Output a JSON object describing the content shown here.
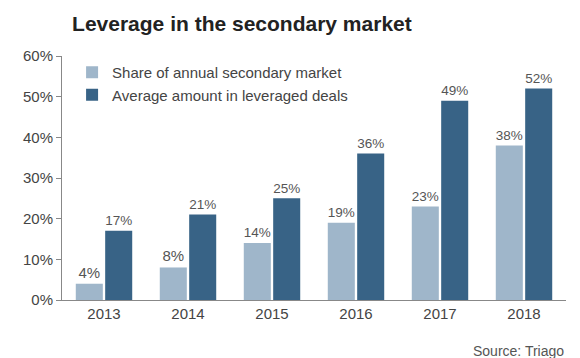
{
  "chart_data": {
    "type": "bar",
    "title": "Leverage in the secondary market",
    "source": "Source: Triago",
    "categories": [
      "2013",
      "2014",
      "2015",
      "2016",
      "2017",
      "2018"
    ],
    "series": [
      {
        "name": "Share of annual secondary market",
        "color": "#9fb6ca",
        "values": [
          4,
          8,
          14,
          19,
          23,
          38
        ],
        "value_labels": [
          "4%",
          "8%",
          "14%",
          "19%",
          "23%",
          "38%"
        ]
      },
      {
        "name": "Average amount in leveraged deals",
        "color": "#386386",
        "values": [
          17,
          21,
          25,
          36,
          49,
          52
        ],
        "value_labels": [
          "17%",
          "21%",
          "25%",
          "36%",
          "49%",
          "52%"
        ]
      }
    ],
    "ylim": [
      0,
      60
    ],
    "yticks": [
      {
        "value": 0,
        "label": "0%"
      },
      {
        "value": 10,
        "label": "10%"
      },
      {
        "value": 20,
        "label": "20%"
      },
      {
        "value": 30,
        "label": "30%"
      },
      {
        "value": 40,
        "label": "40%"
      },
      {
        "value": 50,
        "label": "50%"
      },
      {
        "value": 60,
        "label": "60%"
      }
    ],
    "grid": false,
    "legend": "top-left",
    "data_labels": true
  }
}
